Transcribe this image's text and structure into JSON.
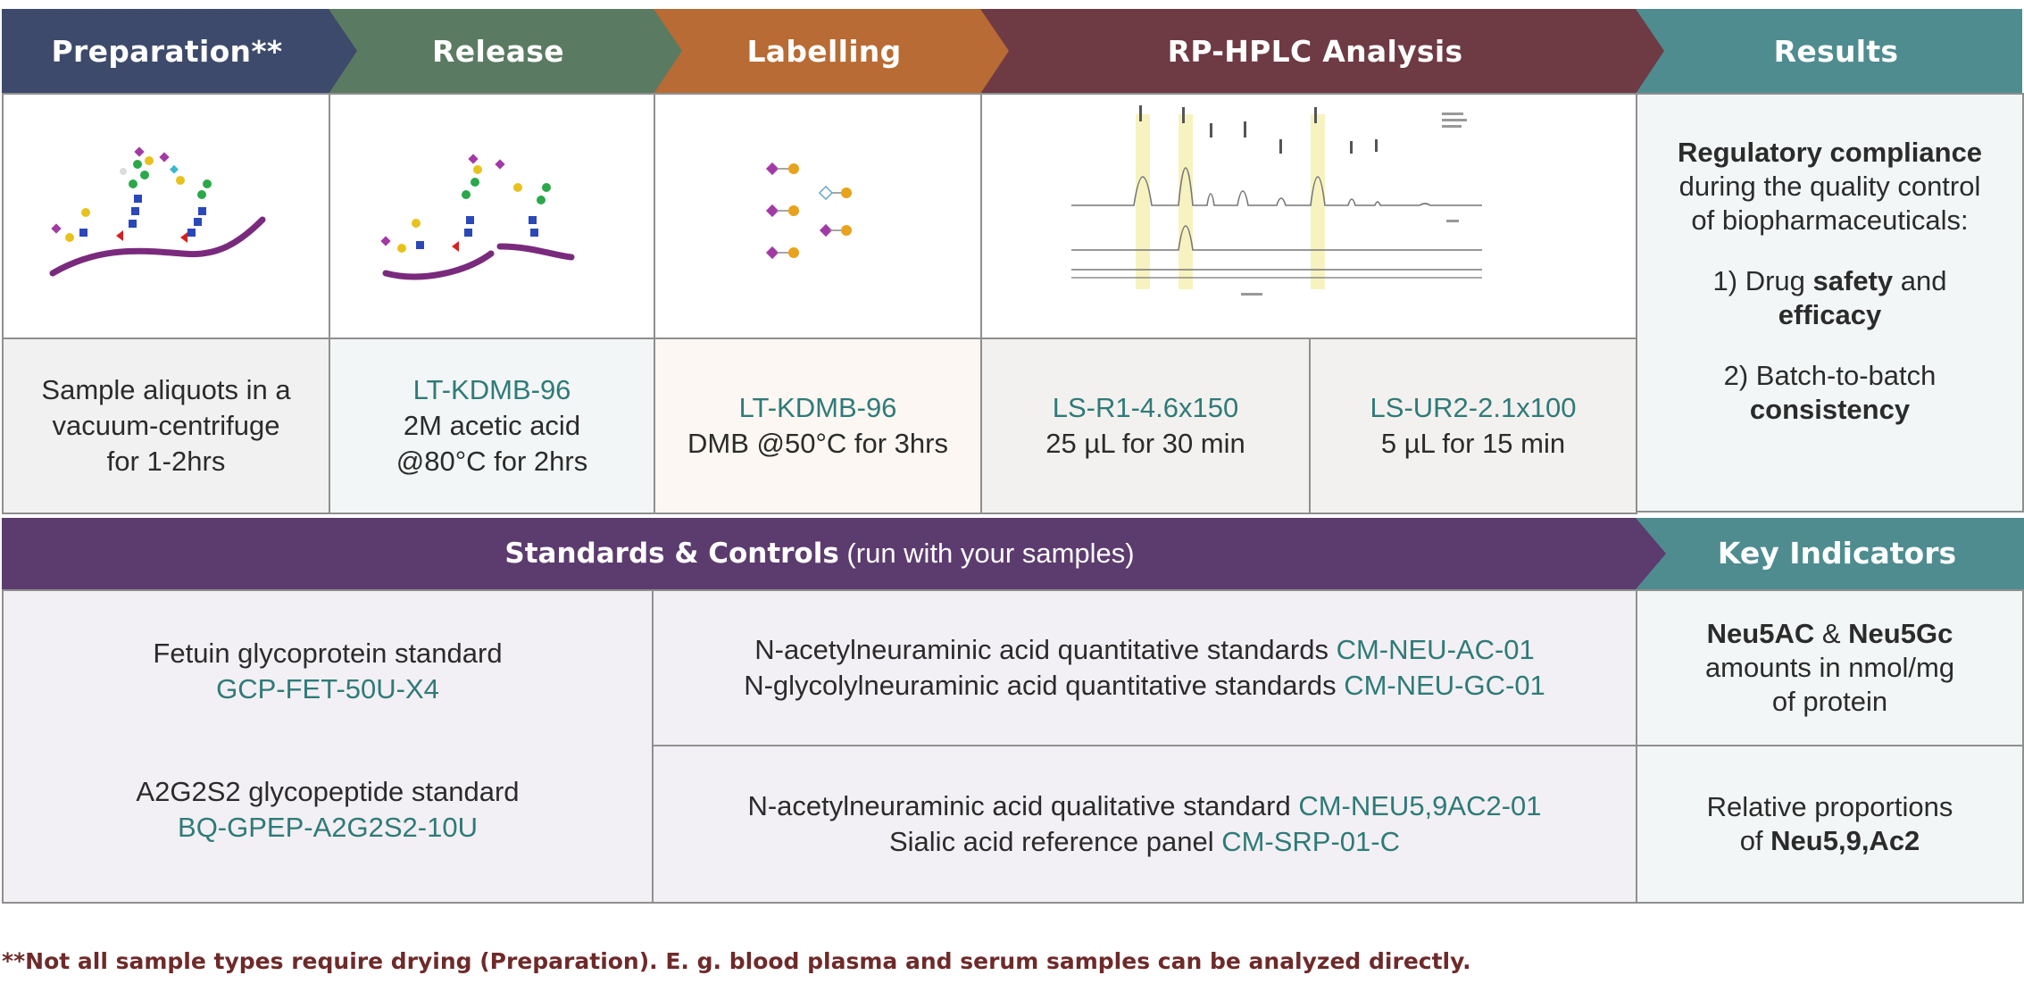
{
  "header": {
    "preparation": "Preparation**",
    "release": "Release",
    "labelling": "Labelling",
    "rphplc": "RP-HPLC Analysis",
    "results": "Results"
  },
  "colors": {
    "preparation": "#3d4a6b",
    "release": "#5b7a62",
    "labelling": "#b86b34",
    "rphplc": "#6e3a44",
    "results": "#4f8c8f",
    "standards": "#5c3b6e",
    "key_indicators": "#4f8c8f",
    "code_text": "#2f7a78"
  },
  "steps": {
    "preparation": {
      "line1": "Sample aliquots in a",
      "line2": "vacuum-centrifuge",
      "line3": "for 1-2hrs"
    },
    "release": {
      "code": "LT-KDMB-96",
      "line2": "2M acetic acid",
      "line3": "@80°C for 2hrs"
    },
    "labelling": {
      "code": "LT-KDMB-96",
      "line2": "DMB @50°C for 3hrs"
    },
    "rphplc_a": {
      "code": "LS-R1-4.6x150",
      "line2": "25 µL for 30 min"
    },
    "rphplc_b": {
      "code": "LS-UR2-2.1x100",
      "line2": "5 µL for 15 min"
    }
  },
  "results": {
    "heading_bold": "Regulatory compliance",
    "heading_line2": "during the quality control",
    "heading_line3": "of biopharmaceuticals:",
    "item1_pre": "1) Drug ",
    "item1_bold": "safety",
    "item1_mid": " and",
    "item1_bold2": "efficacy",
    "item2_pre": "2) Batch-to-batch",
    "item2_bold": "consistency"
  },
  "standards_bar": {
    "bold": "Standards & Controls",
    "normal": " (run with your samples)"
  },
  "key_indicators_label": "Key Indicators",
  "standards": {
    "fetuin": {
      "label": "Fetuin glycoprotein standard",
      "code": "GCP-FET-50U-X4"
    },
    "a2g2s2": {
      "label": "A2G2S2 glycopeptide standard",
      "code": "BQ-GPEP-A2G2S2-10U"
    },
    "quant1": {
      "label": "N-acetylneuraminic acid quantitative standards ",
      "code": "CM-NEU-AC-01"
    },
    "quant2": {
      "label": "N-glycolylneuraminic acid quantitative standards ",
      "code": "CM-NEU-GC-01"
    },
    "qual1": {
      "label": "N-acetylneuraminic acid qualitative standard ",
      "code": "CM-NEU5,9AC2-01"
    },
    "qual2": {
      "label": "Sialic acid reference panel ",
      "code": "CM-SRP-01-C"
    }
  },
  "indicators": {
    "one_bold_a": "Neu5AC",
    "one_amp": " & ",
    "one_bold_b": "Neu5Gc",
    "one_line2": "amounts in nmol/mg",
    "one_line3": "of protein",
    "two_line1": "Relative proportions",
    "two_pre": "of ",
    "two_bold": "Neu5,9,Ac2"
  },
  "footnote": "**Not all sample types require drying (Preparation). E. g. blood plasma and serum samples can be analyzed directly."
}
